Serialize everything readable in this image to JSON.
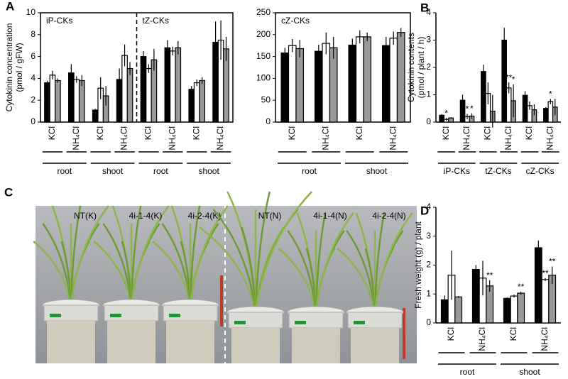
{
  "chart_data": [
    {
      "type": "bar",
      "panel_label": "A",
      "frame": "box",
      "ylabel": [
        "Cytokinin concentration",
        "(pmol / gFW)"
      ],
      "sections": [
        "iP-CKs",
        "tZ-CKs"
      ],
      "categories": [
        "KCl",
        "NH₄Cl",
        "KCl",
        "NH₄Cl",
        "KCl",
        "NH₄Cl",
        "KCl",
        "NH₄Cl"
      ],
      "groups": [
        "root",
        "shoot",
        "root",
        "shoot"
      ],
      "ylim": [
        0,
        10
      ],
      "yticks": [
        0,
        2,
        4,
        6,
        8,
        10
      ],
      "series": [
        {
          "color": "#000000",
          "values": [
            3.6,
            4.5,
            1.1,
            3.9,
            6.0,
            6.8,
            3.0,
            7.3
          ],
          "errors": [
            0.2,
            0.8,
            0.1,
            1.0,
            0.5,
            0.7,
            0.3,
            1.9
          ]
        },
        {
          "color": "#ffffff",
          "values": [
            4.3,
            3.9,
            3.1,
            6.1,
            4.9,
            6.5,
            3.6,
            7.5
          ],
          "errors": [
            0.4,
            0.3,
            1.0,
            1.0,
            0.4,
            0.4,
            0.3,
            1.8
          ]
        },
        {
          "color": "#999999",
          "values": [
            3.8,
            3.8,
            2.4,
            4.9,
            5.7,
            6.8,
            3.8,
            6.7
          ],
          "errors": [
            0.2,
            0.5,
            0.9,
            0.6,
            1.0,
            0.6,
            0.3,
            1.1
          ]
        }
      ]
    },
    {
      "type": "bar",
      "frame": "box",
      "title": "cZ-CKs",
      "categories": [
        "KCl",
        "NH₄Cl",
        "KCl",
        "NH₄Cl"
      ],
      "groups": [
        "root",
        "shoot"
      ],
      "ylim": [
        0,
        250
      ],
      "yticks": [
        0,
        50,
        100,
        150,
        200,
        250
      ],
      "series": [
        {
          "color": "#000000",
          "values": [
            158,
            162,
            176,
            175
          ],
          "errors": [
            12,
            15,
            15,
            20
          ]
        },
        {
          "color": "#ffffff",
          "values": [
            175,
            180,
            195,
            192
          ],
          "errors": [
            15,
            25,
            15,
            15
          ]
        },
        {
          "color": "#999999",
          "values": [
            168,
            170,
            195,
            205
          ],
          "errors": [
            20,
            25,
            10,
            10
          ]
        }
      ]
    },
    {
      "type": "bar",
      "panel_label": "B",
      "frame": "axes",
      "ylabel": [
        "Cytokinin contents",
        "(pmol / plant / h)"
      ],
      "categories": [
        "KCl",
        "NH₄Cl",
        "KCl",
        "NH₄Cl",
        "KCl",
        "NH₄Cl"
      ],
      "groups": [
        "iP-CKs",
        "tZ-CKs",
        "cZ-CKs"
      ],
      "ylim": [
        0,
        4
      ],
      "yticks": [
        0,
        1,
        2,
        3,
        4
      ],
      "series": [
        {
          "color": "#000000",
          "values": [
            0.25,
            0.8,
            1.85,
            3.0,
            0.98,
            0.5
          ],
          "errors": [
            0.04,
            0.2,
            0.25,
            0.45,
            0.15,
            0.05
          ]
        },
        {
          "color": "#ffffff",
          "values": [
            0.1,
            0.2,
            1.05,
            1.25,
            0.6,
            0.75
          ],
          "errors": [
            0.05,
            0.1,
            0.4,
            0.2,
            0.15,
            0.1
          ],
          "significance": [
            "*",
            "*",
            null,
            "**",
            null,
            "*"
          ]
        },
        {
          "color": "#999999",
          "values": [
            0.15,
            0.22,
            0.4,
            0.78,
            0.45,
            0.55
          ],
          "errors": [
            0.03,
            0.1,
            0.6,
            0.6,
            0.2,
            0.3
          ],
          "significance": [
            null,
            "*",
            null,
            "*",
            null,
            null
          ]
        }
      ]
    },
    {
      "type": "bar",
      "panel_label": "D",
      "frame": "axes",
      "ylabel": [
        "Fresh weight (g) / plant"
      ],
      "categories": [
        "KCl",
        "NH₄Cl",
        "KCl",
        "NH₄Cl"
      ],
      "groups": [
        "root",
        "shoot"
      ],
      "ylim": [
        0,
        4
      ],
      "yticks": [
        0,
        1,
        2,
        3,
        4
      ],
      "series": [
        {
          "color": "#000000",
          "values": [
            0.8,
            1.85,
            0.85,
            2.6
          ],
          "errors": [
            0.15,
            0.15,
            0.03,
            0.25
          ]
        },
        {
          "color": "#ffffff",
          "values": [
            1.65,
            1.55,
            0.93,
            1.5
          ],
          "errors": [
            0.85,
            0.6,
            0.05,
            0.05
          ],
          "significance": [
            null,
            null,
            null,
            "**"
          ]
        },
        {
          "color": "#999999",
          "values": [
            0.9,
            1.28,
            1.03,
            1.65
          ],
          "errors": [
            0.03,
            0.2,
            0.05,
            0.3
          ],
          "significance": [
            null,
            "**",
            "**",
            "**"
          ]
        }
      ]
    }
  ],
  "photo": {
    "panel_label": "C",
    "labels": [
      "NT(K)",
      "4i-1-4(K)",
      "4i-2-4(K)",
      "NT(N)",
      "4i-1-4(N)",
      "4i-2-4(N)"
    ]
  }
}
